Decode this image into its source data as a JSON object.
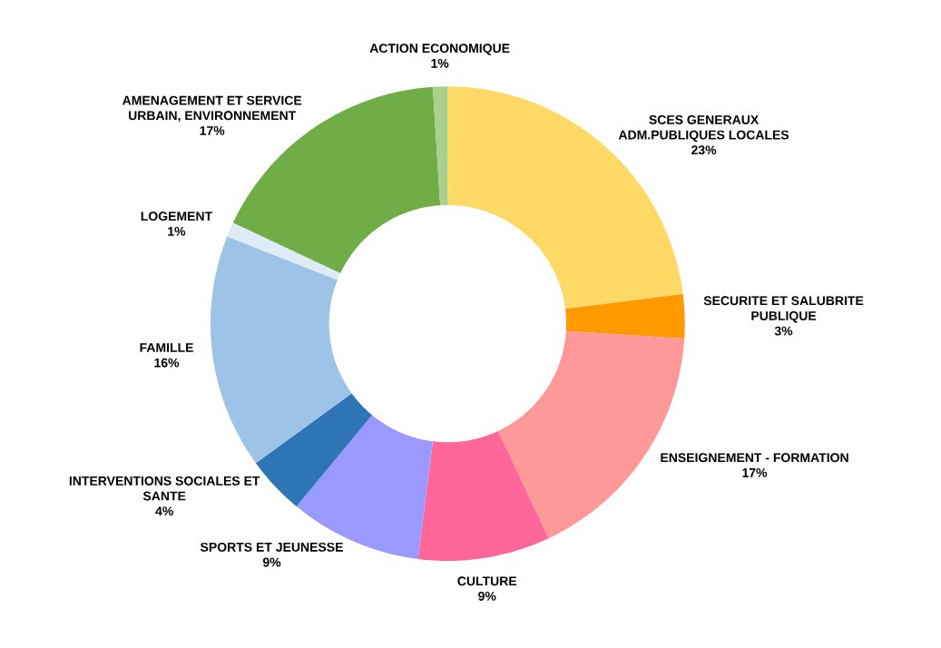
{
  "chart_data": {
    "type": "donut",
    "categories": [
      "SCES GENERAUX ADM.PUBLIQUES LOCALES",
      "SECURITE ET SALUBRITE PUBLIQUE",
      "ENSEIGNEMENT - FORMATION",
      "CULTURE",
      "SPORTS ET JEUNESSE",
      "INTERVENTIONS SOCIALES ET SANTE",
      "FAMILLE",
      "LOGEMENT",
      "AMENAGEMENT ET SERVICE URBAIN, ENVIRONNEMENT",
      "ACTION ECONOMIQUE"
    ],
    "values": [
      23,
      3,
      17,
      9,
      9,
      4,
      16,
      1,
      17,
      1
    ],
    "value_labels": [
      "23%",
      "3%",
      "17%",
      "9%",
      "9%",
      "4%",
      "16%",
      "1%",
      "17%",
      "1%"
    ],
    "colors": [
      "#ffd966",
      "#ff9900",
      "#ff9999",
      "#ff6699",
      "#9999ff",
      "#2e75b6",
      "#9dc3e6",
      "#ddebf7",
      "#70ad47",
      "#a9d18e"
    ]
  }
}
